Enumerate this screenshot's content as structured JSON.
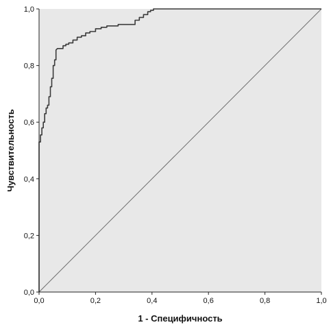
{
  "chart_data": {
    "type": "line",
    "title": "",
    "xlabel": "1 - Специфичность",
    "ylabel": "Чувствительность",
    "xlim": [
      0,
      1
    ],
    "ylim": [
      0,
      1
    ],
    "x_ticks": [
      "0,0",
      "0,2",
      "0,4",
      "0,6",
      "0,8",
      "1,0"
    ],
    "y_ticks": [
      "0,0",
      "0,2",
      "0,4",
      "0,6",
      "0,8",
      "1,0"
    ],
    "grid": false,
    "legend": "none",
    "colors": {
      "plot_background": "#e8e8e8",
      "roc_curve": "#3a3a3a",
      "reference_line": "#6e6e6e",
      "axis": "#222222"
    },
    "series": [
      {
        "x": [
          0.0,
          0.0,
          0.005,
          0.005,
          0.01,
          0.01,
          0.015,
          0.015,
          0.02,
          0.02,
          0.025,
          0.025,
          0.03,
          0.03,
          0.035,
          0.035,
          0.04,
          0.04,
          0.045,
          0.045,
          0.05,
          0.05,
          0.055,
          0.055,
          0.06,
          0.06,
          0.065,
          0.075,
          0.085,
          0.085,
          0.095,
          0.095,
          0.105,
          0.105,
          0.12,
          0.12,
          0.135,
          0.135,
          0.15,
          0.15,
          0.165,
          0.165,
          0.18,
          0.18,
          0.2,
          0.2,
          0.22,
          0.22,
          0.24,
          0.24,
          0.28,
          0.28,
          0.34,
          0.34,
          0.355,
          0.355,
          0.37,
          0.37,
          0.385,
          0.385,
          0.395,
          0.395,
          0.405,
          0.405,
          1.0
        ],
        "y": [
          0.0,
          0.53,
          0.53,
          0.555,
          0.555,
          0.58,
          0.58,
          0.6,
          0.6,
          0.63,
          0.63,
          0.65,
          0.65,
          0.66,
          0.66,
          0.69,
          0.69,
          0.725,
          0.725,
          0.755,
          0.755,
          0.8,
          0.8,
          0.82,
          0.82,
          0.855,
          0.86,
          0.86,
          0.86,
          0.87,
          0.87,
          0.875,
          0.875,
          0.88,
          0.88,
          0.89,
          0.89,
          0.9,
          0.9,
          0.905,
          0.905,
          0.915,
          0.915,
          0.92,
          0.92,
          0.93,
          0.93,
          0.935,
          0.935,
          0.94,
          0.94,
          0.945,
          0.945,
          0.96,
          0.96,
          0.97,
          0.97,
          0.98,
          0.98,
          0.99,
          0.99,
          0.995,
          0.995,
          1.0,
          1.0
        ]
      },
      {
        "x": [
          0,
          1
        ],
        "y": [
          0,
          1
        ]
      }
    ]
  }
}
